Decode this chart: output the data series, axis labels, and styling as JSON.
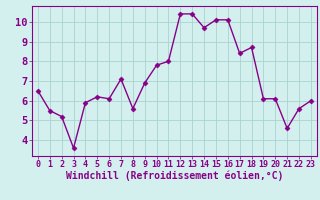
{
  "x": [
    0,
    1,
    2,
    3,
    4,
    5,
    6,
    7,
    8,
    9,
    10,
    11,
    12,
    13,
    14,
    15,
    16,
    17,
    18,
    19,
    20,
    21,
    22,
    23
  ],
  "y": [
    6.5,
    5.5,
    5.2,
    3.6,
    5.9,
    6.2,
    6.1,
    7.1,
    5.6,
    6.9,
    7.8,
    8.0,
    10.4,
    10.4,
    9.7,
    10.1,
    10.1,
    8.4,
    8.7,
    6.1,
    6.1,
    4.6,
    5.6,
    6.0
  ],
  "line_color": "#880088",
  "marker": "D",
  "marker_size": 2.5,
  "bg_color": "#d4f0ee",
  "grid_color": "#a8d4d0",
  "xlabel": "Windchill (Refroidissement éolien,°C)",
  "xlim": [
    -0.5,
    23.5
  ],
  "ylim": [
    3.2,
    10.8
  ],
  "yticks": [
    4,
    5,
    6,
    7,
    8,
    9,
    10
  ],
  "xticks": [
    0,
    1,
    2,
    3,
    4,
    5,
    6,
    7,
    8,
    9,
    10,
    11,
    12,
    13,
    14,
    15,
    16,
    17,
    18,
    19,
    20,
    21,
    22,
    23
  ],
  "xlabel_fontsize": 7.0,
  "ytick_fontsize": 7.5,
  "xtick_fontsize": 6.0,
  "tick_color": "#880088",
  "spine_color": "#880088",
  "linewidth": 1.0
}
